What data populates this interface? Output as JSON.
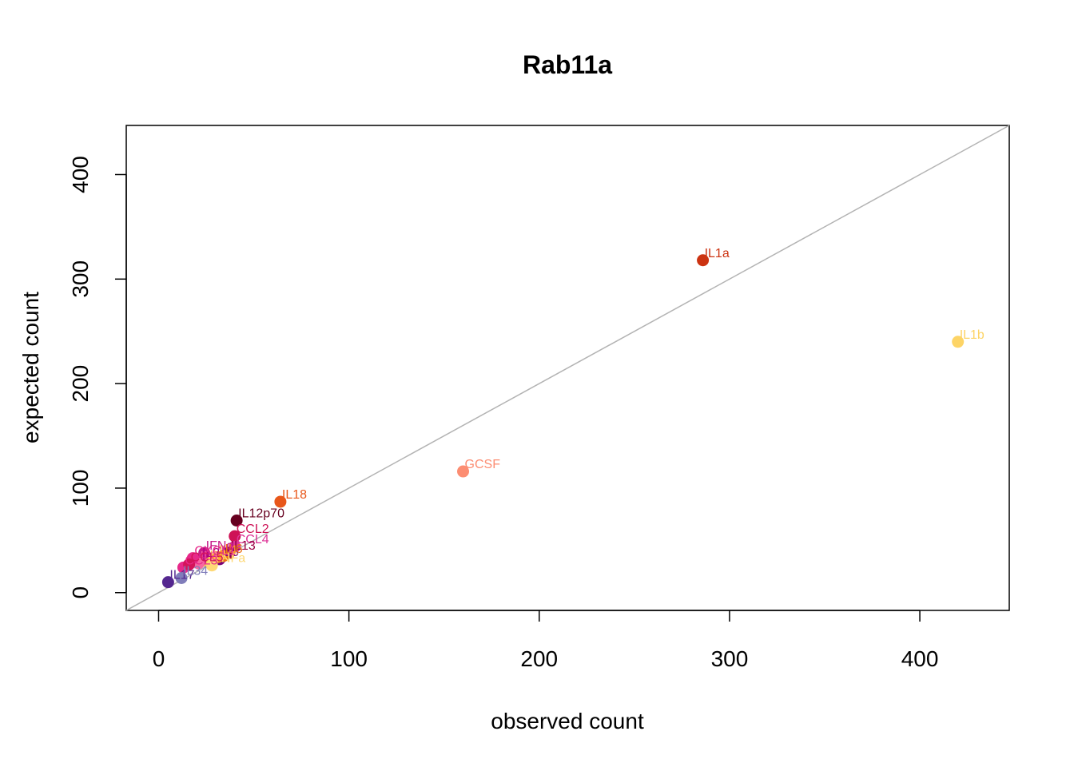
{
  "chart_data": {
    "type": "scatter",
    "title": "Rab11a",
    "xlabel": "observed count",
    "ylabel": "expected count",
    "xlim": [
      -17,
      447
    ],
    "ylim": [
      -17,
      447
    ],
    "xticks": [
      "0",
      "100",
      "200",
      "300",
      "400"
    ],
    "yticks": [
      "0",
      "100",
      "200",
      "300",
      "400"
    ],
    "reference_line": {
      "type": "identity",
      "color": "#b3b3b3"
    },
    "grid": false,
    "legend": "none",
    "points": [
      {
        "label": "IL1a",
        "x": 286,
        "y": 318,
        "color": "#cc3311"
      },
      {
        "label": "IL1b",
        "x": 420,
        "y": 240,
        "color": "#fdd466"
      },
      {
        "label": "GCSF",
        "x": 160,
        "y": 116,
        "color": "#fc8d72"
      },
      {
        "label": "IL18",
        "x": 64,
        "y": 87,
        "color": "#e8571a"
      },
      {
        "label": "IL12p70",
        "x": 41,
        "y": 69,
        "color": "#67001f"
      },
      {
        "label": "CCL2",
        "x": 40,
        "y": 54,
        "color": "#ce1256"
      },
      {
        "label": "CCL4",
        "x": 40,
        "y": 44,
        "color": "#dd3497"
      },
      {
        "label": "IL13",
        "x": 37,
        "y": 38,
        "color": "#980043"
      },
      {
        "label": "IL5",
        "x": 32,
        "y": 32,
        "color": "#7a0177"
      },
      {
        "label": "IL6",
        "x": 34,
        "y": 35,
        "color": "#ec7014"
      },
      {
        "label": "IL4",
        "x": 31,
        "y": 34,
        "color": "#fe9929"
      },
      {
        "label": "IL10",
        "x": 26,
        "y": 29,
        "color": "#fec44f"
      },
      {
        "label": "IL2",
        "x": 22,
        "y": 31,
        "color": "#ae017e"
      },
      {
        "label": "IL3",
        "x": 21,
        "y": 28,
        "color": "#f768a1"
      },
      {
        "label": "TNFa",
        "x": 28,
        "y": 26,
        "color": "#fed976"
      },
      {
        "label": "IFNg",
        "x": 24,
        "y": 38,
        "color": "#c51b8a"
      },
      {
        "label": "CXCL1",
        "x": 18,
        "y": 33,
        "color": "#e7298a"
      },
      {
        "label": "CCL3",
        "x": 13,
        "y": 24,
        "color": "#e7298a"
      },
      {
        "label": "CCL5",
        "x": 16,
        "y": 27,
        "color": "#d4145a"
      },
      {
        "label": "IL17",
        "x": 5,
        "y": 10,
        "color": "#54278f"
      },
      {
        "label": "IL34",
        "x": 12,
        "y": 14,
        "color": "#807dba"
      }
    ]
  }
}
